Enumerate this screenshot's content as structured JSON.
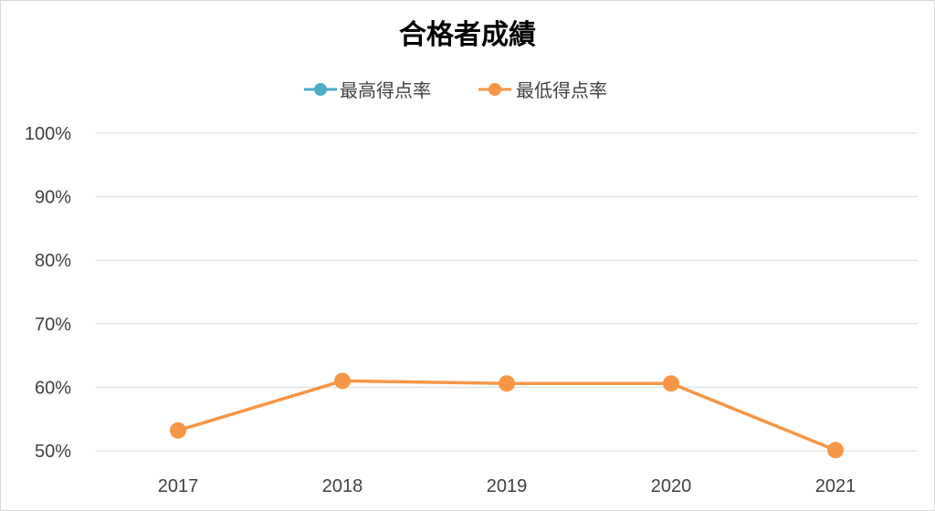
{
  "chart_data": {
    "type": "line",
    "title": "合格者成績",
    "categories": [
      "2017",
      "2018",
      "2019",
      "2020",
      "2021"
    ],
    "series": [
      {
        "name": "最高得点率",
        "color": "#4bacc6",
        "values": [
          null,
          null,
          null,
          null,
          null
        ]
      },
      {
        "name": "最低得点率",
        "color": "#f79646",
        "values": [
          53.2,
          61.0,
          60.6,
          60.6,
          50.1
        ]
      }
    ],
    "ylim": [
      50,
      100
    ],
    "yticks": [
      "50%",
      "60%",
      "70%",
      "80%",
      "90%",
      "100%"
    ],
    "ytick_values": [
      50,
      60,
      70,
      80,
      90,
      100
    ],
    "grid": true,
    "legend_position": "top"
  }
}
